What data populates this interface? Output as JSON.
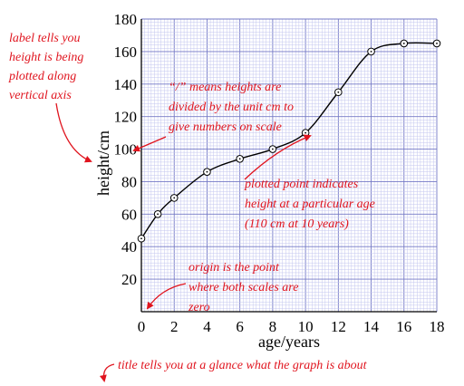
{
  "chart_data": {
    "type": "line",
    "xlabel": "age/years",
    "ylabel": "height/cm",
    "xlim": [
      0,
      18
    ],
    "ylim": [
      0,
      180
    ],
    "x_ticks": [
      0,
      2,
      4,
      6,
      8,
      10,
      12,
      14,
      16,
      18
    ],
    "y_ticks": [
      20,
      40,
      60,
      80,
      100,
      120,
      140,
      160,
      180
    ],
    "grid": true,
    "series": [
      {
        "x": [
          0,
          1,
          2,
          4,
          6,
          8,
          10,
          12,
          14,
          16,
          18
        ],
        "y": [
          45,
          60,
          70,
          86,
          94,
          100,
          110,
          135,
          160,
          165,
          165
        ]
      }
    ],
    "annotations": [
      {
        "id": "label",
        "lines": [
          "label tells you",
          "height is being",
          "plotted along",
          "vertical axis"
        ]
      },
      {
        "id": "slash",
        "lines": [
          "“/” means heights are",
          "divided by the unit cm to",
          "give numbers on scale"
        ]
      },
      {
        "id": "point",
        "lines": [
          "plotted point indicates",
          "height at a particular age",
          "(110 cm at 10 years)"
        ]
      },
      {
        "id": "origin",
        "lines": [
          "origin is the point",
          "where both scales are",
          "zero"
        ]
      },
      {
        "id": "title",
        "lines": [
          "title tells you at a glance what the graph is about"
        ]
      }
    ]
  }
}
